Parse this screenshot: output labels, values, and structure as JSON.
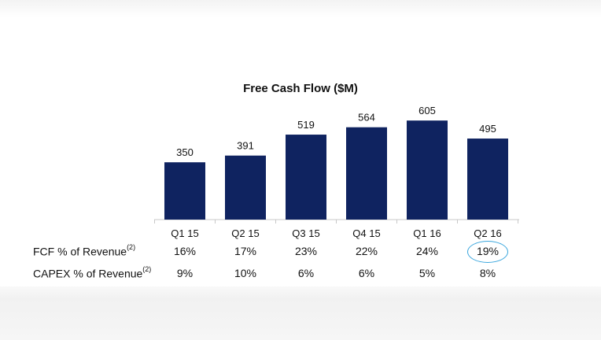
{
  "chart_data": {
    "type": "bar",
    "title": "Free Cash Flow ($M)",
    "categories": [
      "Q1 15",
      "Q2 15",
      "Q3 15",
      "Q4 15",
      "Q1 16",
      "Q2 16"
    ],
    "values": [
      350,
      391,
      519,
      564,
      605,
      495
    ],
    "data_labels": [
      "350",
      "391",
      "519",
      "564",
      "605",
      "495"
    ],
    "bar_color": "#0f2360",
    "axis_color": "#c8c8c8",
    "ylim": [
      0,
      700
    ],
    "grid": false,
    "legend": "none"
  },
  "table": {
    "rows": [
      {
        "label": "FCF % of Revenue",
        "footnote": "(2)",
        "values": [
          "16%",
          "17%",
          "23%",
          "22%",
          "24%",
          "19%"
        ]
      },
      {
        "label": "CAPEX % of Revenue",
        "footnote": "(2)",
        "values": [
          "9%",
          "10%",
          "6%",
          "6%",
          "5%",
          "8%"
        ]
      }
    ],
    "highlight": {
      "row": 0,
      "col": 5,
      "color": "#3aa6dd"
    }
  }
}
